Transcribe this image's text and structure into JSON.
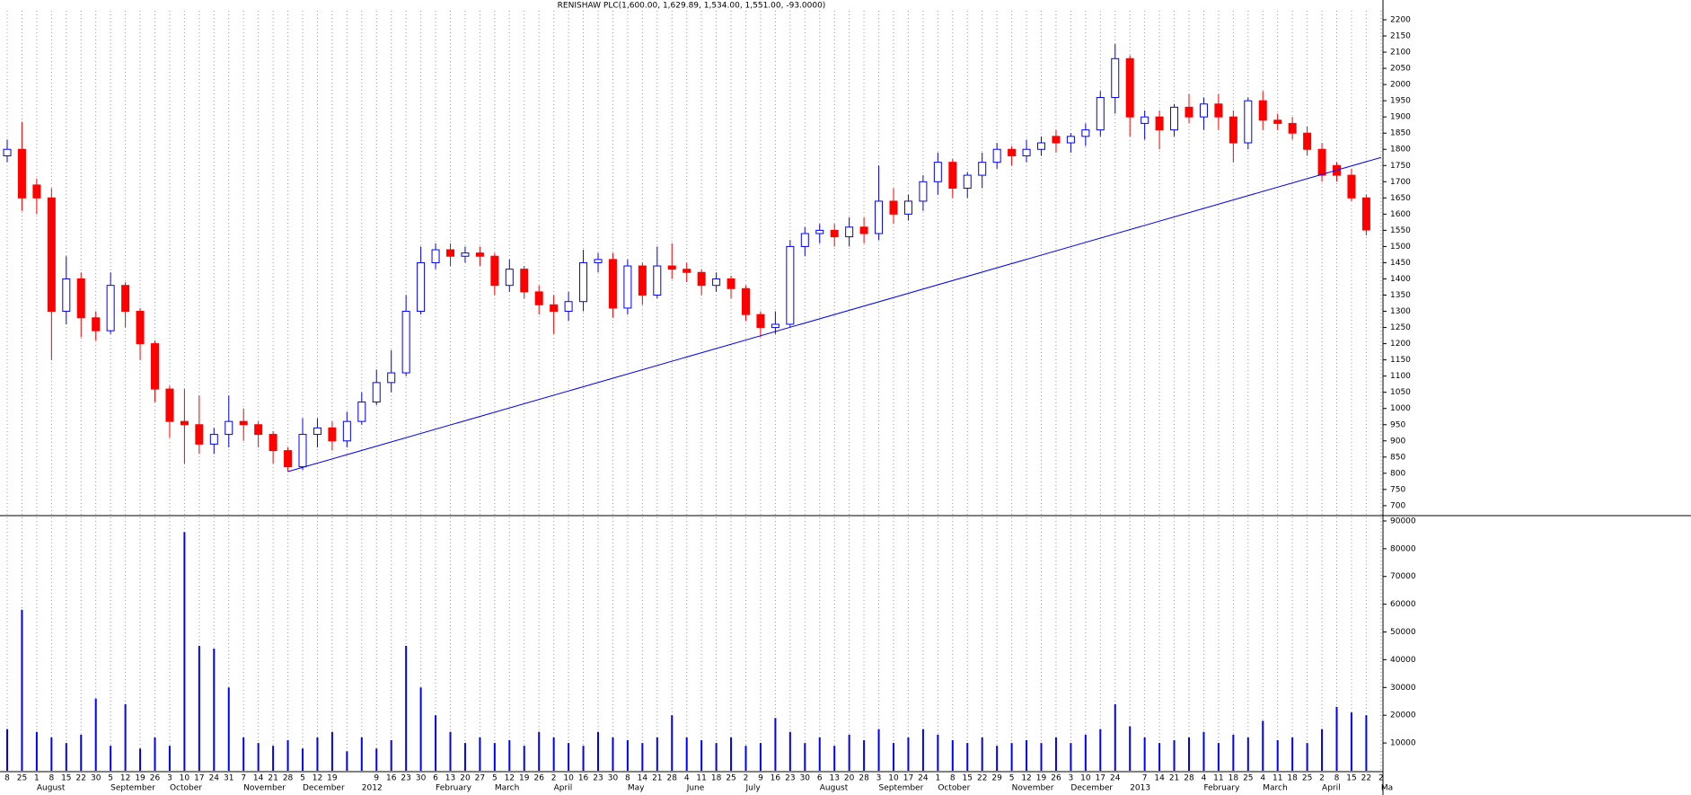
{
  "chart_data": [
    {
      "type": "candlestick",
      "title": "RENISHAW PLC(1,600.00, 1,629.89, 1,534.00, 1,551.00, -93.0000)",
      "up_color": "#0000ff",
      "down_color": "#ff0000",
      "ylim": [
        672,
        2261
      ],
      "yticks": [
        700,
        750,
        800,
        850,
        900,
        950,
        1000,
        1050,
        1100,
        1150,
        1200,
        1250,
        1300,
        1350,
        1400,
        1450,
        1500,
        1550,
        1600,
        1650,
        1700,
        1750,
        1800,
        1850,
        1900,
        1950,
        2000,
        2050,
        2100,
        2150,
        2200
      ],
      "open": [
        1780,
        1800,
        1690,
        1650,
        1300,
        1400,
        1280,
        1240,
        1380,
        1300,
        1200,
        1060,
        960,
        950,
        890,
        920,
        960,
        950,
        920,
        870,
        820,
        920,
        940,
        900,
        960,
        1020,
        1080,
        1110,
        1300,
        1450,
        1490,
        1470,
        1480,
        1470,
        1380,
        1430,
        1360,
        1320,
        1300,
        1330,
        1450,
        1460,
        1310,
        1440,
        1350,
        1440,
        1430,
        1420,
        1380,
        1400,
        1370,
        1290,
        1250,
        1260,
        1500,
        1540,
        1550,
        1530,
        1560,
        1540,
        1640,
        1600,
        1640,
        1700,
        1760,
        1680,
        1720,
        1760,
        1800,
        1780,
        1800,
        1840,
        1820,
        1840,
        1860,
        1960,
        2080,
        1880,
        1900,
        1860,
        1930,
        1900,
        1940,
        1900,
        1820,
        1950,
        1890,
        1880,
        1850,
        1800,
        1750,
        1720,
        1650,
        null
      ],
      "high": [
        1830,
        1885,
        1710,
        1680,
        1470,
        1420,
        1300,
        1420,
        1390,
        1310,
        1210,
        1070,
        1060,
        1040,
        940,
        1040,
        1000,
        960,
        930,
        880,
        970,
        970,
        960,
        990,
        1050,
        1120,
        1180,
        1350,
        1500,
        1510,
        1510,
        1500,
        1500,
        1480,
        1460,
        1440,
        1380,
        1350,
        1360,
        1490,
        1480,
        1480,
        1460,
        1450,
        1500,
        1510,
        1450,
        1430,
        1420,
        1410,
        1380,
        1300,
        1300,
        1520,
        1560,
        1570,
        1570,
        1590,
        1590,
        1750,
        1680,
        1660,
        1720,
        1790,
        1770,
        1730,
        1790,
        1820,
        1810,
        1830,
        1840,
        1860,
        1850,
        1880,
        1980,
        2125,
        2090,
        1920,
        1920,
        1940,
        1970,
        1960,
        1970,
        1920,
        1960,
        1980,
        1910,
        1900,
        1870,
        1820,
        1760,
        1740,
        1660,
        null
      ],
      "low": [
        1760,
        1610,
        1600,
        1150,
        1260,
        1220,
        1210,
        1230,
        1250,
        1150,
        1020,
        910,
        830,
        860,
        860,
        880,
        900,
        880,
        830,
        805,
        810,
        880,
        870,
        880,
        950,
        1010,
        1050,
        1100,
        1290,
        1430,
        1440,
        1450,
        1440,
        1350,
        1360,
        1340,
        1290,
        1230,
        1270,
        1300,
        1420,
        1280,
        1290,
        1320,
        1340,
        1400,
        1390,
        1350,
        1360,
        1340,
        1270,
        1220,
        1230,
        1250,
        1470,
        1510,
        1500,
        1500,
        1510,
        1520,
        1570,
        1580,
        1610,
        1660,
        1650,
        1650,
        1680,
        1740,
        1750,
        1760,
        1780,
        1790,
        1790,
        1810,
        1840,
        1910,
        1840,
        1830,
        1800,
        1840,
        1880,
        1860,
        1860,
        1760,
        1800,
        1860,
        1860,
        1830,
        1780,
        1700,
        1700,
        1640,
        1534,
        null
      ],
      "close": [
        1800,
        1650,
        1650,
        1300,
        1400,
        1280,
        1240,
        1380,
        1300,
        1200,
        1060,
        960,
        950,
        890,
        920,
        960,
        950,
        920,
        870,
        820,
        920,
        940,
        900,
        960,
        1020,
        1080,
        1110,
        1300,
        1450,
        1490,
        1470,
        1480,
        1470,
        1380,
        1430,
        1360,
        1320,
        1300,
        1330,
        1450,
        1460,
        1310,
        1440,
        1350,
        1440,
        1430,
        1420,
        1380,
        1400,
        1370,
        1290,
        1250,
        1260,
        1500,
        1540,
        1550,
        1530,
        1560,
        1540,
        1640,
        1600,
        1640,
        1700,
        1760,
        1680,
        1720,
        1760,
        1800,
        1780,
        1800,
        1820,
        1820,
        1840,
        1860,
        1960,
        2080,
        1900,
        1900,
        1860,
        1930,
        1900,
        1940,
        1900,
        1820,
        1950,
        1890,
        1880,
        1850,
        1800,
        1720,
        1720,
        1650,
        1551,
        null
      ],
      "trendline": {
        "x": [
          19,
          93
        ],
        "y": [
          805,
          1775
        ],
        "color": "#0000ff"
      }
    },
    {
      "type": "bar",
      "color": "#0000ff",
      "grid": true,
      "ylim": [
        0,
        91600
      ],
      "yticks": [
        10000,
        20000,
        30000,
        40000,
        50000,
        60000,
        70000,
        80000,
        90000
      ],
      "categories": [
        "8",
        "25",
        "1",
        "8",
        "15",
        "22",
        "30",
        "5",
        "12",
        "19",
        "26",
        "3",
        "10",
        "17",
        "24",
        "31",
        "7",
        "14",
        "21",
        "28",
        "5",
        "12",
        "19",
        null,
        null,
        "9",
        "16",
        "23",
        "30",
        "6",
        "13",
        "20",
        "27",
        "5",
        "12",
        "19",
        "26",
        "2",
        "10",
        "16",
        "23",
        "30",
        "8",
        "14",
        "21",
        "28",
        "4",
        "11",
        "18",
        "25",
        "2",
        "9",
        "16",
        "23",
        "30",
        "6",
        "13",
        "20",
        "28",
        "3",
        "10",
        "17",
        "24",
        "1",
        "8",
        "15",
        "22",
        "29",
        "5",
        "12",
        "19",
        "26",
        "3",
        "10",
        "17",
        "24",
        null,
        "7",
        "14",
        "21",
        "28",
        "4",
        "11",
        "18",
        "25",
        "4",
        "11",
        "18",
        "25",
        "2",
        "8",
        "15",
        "22",
        "2"
      ],
      "months": [
        null,
        null,
        "August",
        null,
        null,
        null,
        null,
        "September",
        null,
        null,
        null,
        "October",
        null,
        null,
        null,
        null,
        "November",
        null,
        null,
        null,
        "December",
        null,
        null,
        null,
        "2012",
        null,
        null,
        null,
        null,
        "February",
        null,
        null,
        null,
        "March",
        null,
        null,
        null,
        "April",
        null,
        null,
        null,
        null,
        "May",
        null,
        null,
        null,
        "June",
        null,
        null,
        null,
        "July",
        null,
        null,
        null,
        null,
        "August",
        null,
        null,
        null,
        "September",
        null,
        null,
        null,
        "October",
        null,
        null,
        null,
        null,
        "November",
        null,
        null,
        null,
        "December",
        null,
        null,
        null,
        "2013",
        null,
        null,
        null,
        null,
        "February",
        null,
        null,
        null,
        "March",
        null,
        null,
        null,
        "April",
        null,
        null,
        null,
        "Ma"
      ],
      "values": [
        15000,
        58000,
        14000,
        12000,
        10000,
        13000,
        26000,
        9000,
        24000,
        8000,
        12000,
        9000,
        86000,
        45000,
        44000,
        30000,
        12000,
        10000,
        9000,
        11000,
        8000,
        12000,
        14000,
        7000,
        12000,
        8000,
        11000,
        45000,
        30000,
        20000,
        14000,
        10000,
        12000,
        10000,
        11000,
        9000,
        14000,
        12000,
        10000,
        9000,
        14000,
        12000,
        11000,
        10000,
        12000,
        20000,
        12000,
        11000,
        10000,
        12000,
        9000,
        10000,
        19000,
        14000,
        10000,
        12000,
        9000,
        13000,
        11000,
        15000,
        10000,
        12000,
        15000,
        13000,
        11000,
        10000,
        12000,
        9000,
        10000,
        11000,
        10000,
        12000,
        10000,
        13000,
        15000,
        24000,
        16000,
        12000,
        10000,
        11000,
        12000,
        14000,
        10000,
        13000,
        12000,
        18000,
        11000,
        12000,
        10000,
        15000,
        23000,
        21000,
        20000,
        null
      ]
    }
  ]
}
